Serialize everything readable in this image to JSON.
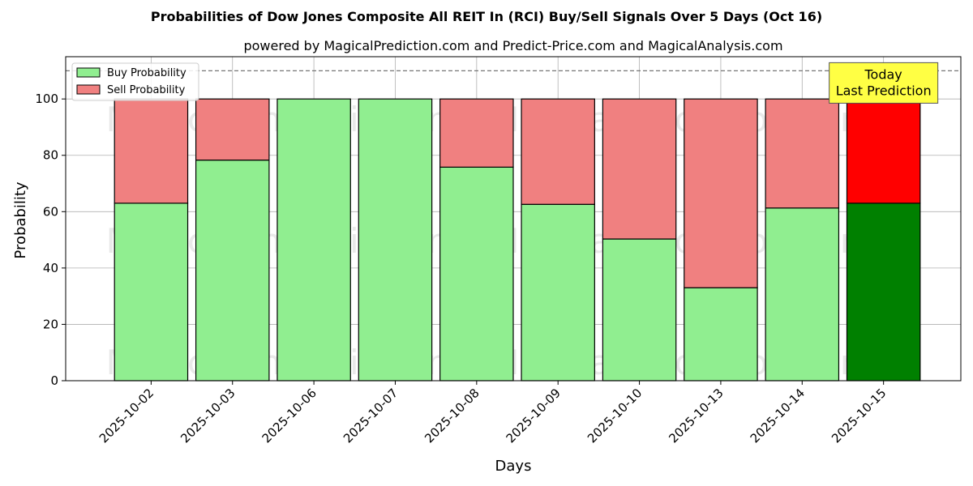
{
  "chart_data": {
    "type": "bar",
    "title": "Probabilities of Dow Jones Composite All REIT In (RCI) Buy/Sell Signals Over 5 Days (Oct 16)",
    "subtitle": "powered by MagicalPrediction.com and Predict-Price.com and MagicalAnalysis.com",
    "xlabel": "Days",
    "ylabel": "Probability",
    "ylim": [
      0,
      115
    ],
    "yticks": [
      0,
      20,
      40,
      60,
      80,
      100
    ],
    "grid": true,
    "legend_position": "top-left",
    "stacked": true,
    "categories": [
      "2025-10-02",
      "2025-10-03",
      "2025-10-06",
      "2025-10-07",
      "2025-10-08",
      "2025-10-09",
      "2025-10-10",
      "2025-10-13",
      "2025-10-14",
      "2025-10-15"
    ],
    "series": [
      {
        "name": "Buy Probability",
        "values": [
          63,
          78.3,
          100,
          100,
          75.8,
          62.6,
          50.3,
          33,
          61.3,
          63
        ],
        "color": "#90ee90",
        "highlight_color": "#008000"
      },
      {
        "name": "Sell Probability",
        "values": [
          37,
          21.7,
          0,
          0,
          24.2,
          37.4,
          49.7,
          67,
          38.7,
          37
        ],
        "color": "#f08080",
        "highlight_color": "#ff0000"
      }
    ],
    "reference_line": {
      "y": 110,
      "style": "dashed"
    },
    "annotation": {
      "lines": [
        "Today",
        "Last Prediction"
      ],
      "category_index": 9,
      "color": "#ffff44"
    },
    "watermarks": [
      "MagicalAnalysis.com",
      "MagicalPrediction.com"
    ]
  }
}
